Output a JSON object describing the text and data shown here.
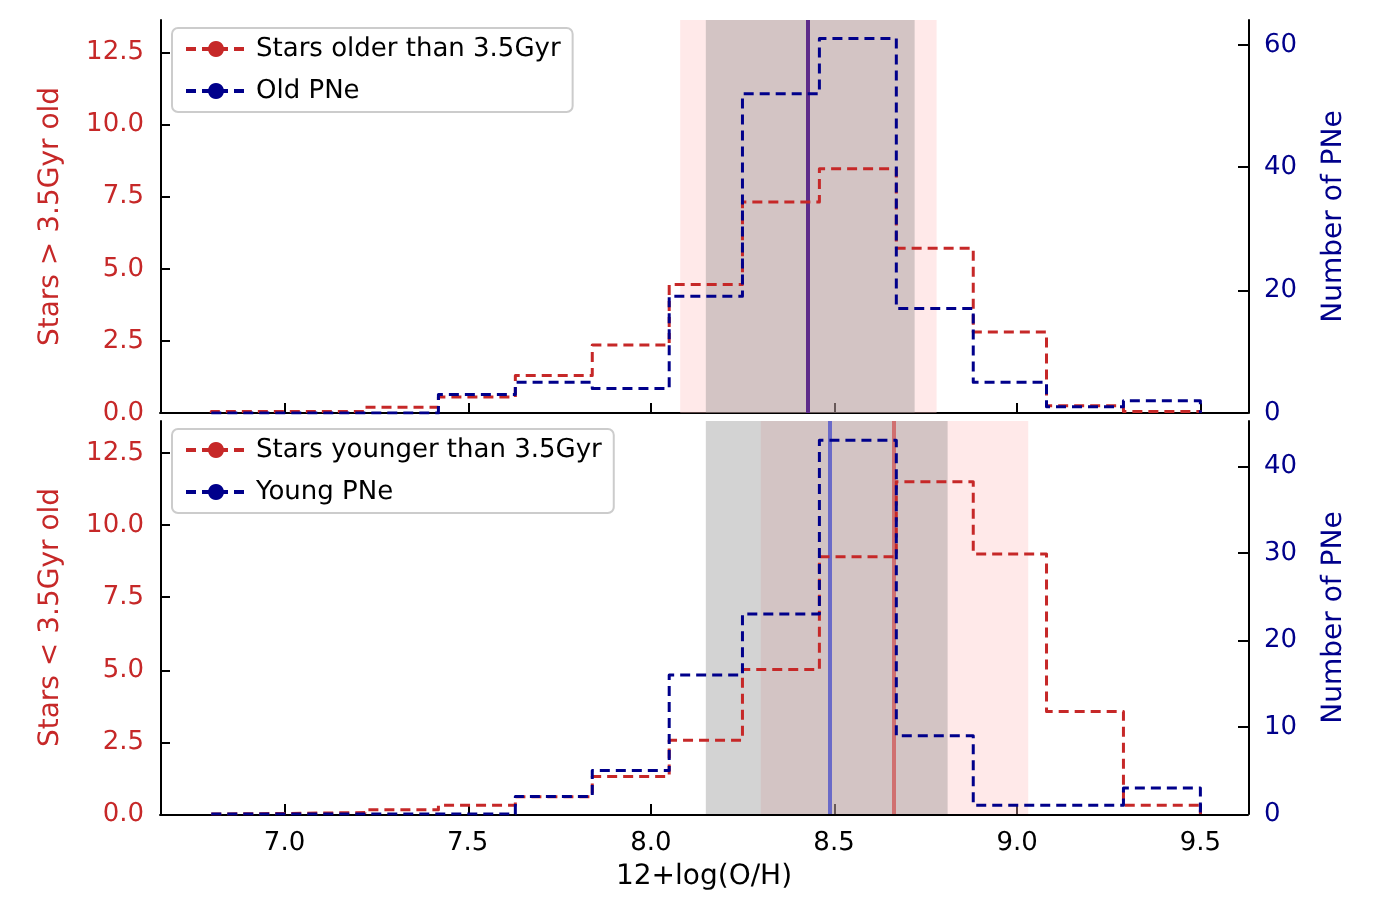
{
  "chart_data": [
    {
      "type": "histogram",
      "ylabel": "Stars > 3.5Gyr old",
      "y2label": "Number of PNe",
      "bins": [
        6.8,
        7.01,
        7.22,
        7.42,
        7.63,
        7.84,
        8.05,
        8.25,
        8.46,
        8.67,
        8.88,
        9.08,
        9.29,
        9.5
      ],
      "series": [
        {
          "name": "Stars older than 3.5Gyr",
          "color": "#c62828",
          "values": [
            0.05,
            0.05,
            0.2,
            0.55,
            1.3,
            2.35,
            4.45,
            7.3,
            8.45,
            5.7,
            2.8,
            0.25,
            0.05
          ]
        },
        {
          "name": "Old PNe",
          "color": "#00008b",
          "axis": "y2",
          "values": [
            0,
            0,
            0,
            3,
            5,
            4,
            19,
            52,
            61,
            17,
            5,
            1,
            2
          ]
        }
      ],
      "xlim": [
        6.66,
        9.63
      ],
      "xticks": [
        7,
        7.5,
        8,
        8.5,
        9,
        9.5
      ],
      "ylim": [
        0,
        13.6
      ],
      "yticks": [
        {
          "value": 0,
          "label": "0.0"
        },
        2.5,
        {
          "value": 5,
          "label": "5.0"
        },
        7.5,
        {
          "value": 10,
          "label": "10.0"
        },
        12.5
      ],
      "y2lim": [
        0,
        64
      ],
      "y2ticks": [
        0,
        20,
        40,
        60
      ],
      "bands": [
        {
          "axis": "x",
          "from": 8.08,
          "to": 8.78,
          "color": "#ffc0c0"
        },
        {
          "axis": "x",
          "from": 8.15,
          "to": 8.72,
          "color": "#808080"
        }
      ],
      "ref_lines": [
        {
          "axis": "x",
          "value": 8.43,
          "color": "#5e2b8a"
        }
      ],
      "legend": "top left",
      "line_style": "dashed",
      "tick_labels": "y",
      "grid": false
    },
    {
      "type": "histogram",
      "ylabel": "Stars < 3.5Gyr old",
      "y2label": "Number of PNe",
      "xlabel": "12+log(O/H)",
      "bins": [
        6.8,
        7.01,
        7.22,
        7.42,
        7.63,
        7.84,
        8.05,
        8.25,
        8.46,
        8.67,
        8.88,
        9.08,
        9.29,
        9.5
      ],
      "series": [
        {
          "name": "Stars younger than 3.5Gyr",
          "color": "#c62828",
          "values": [
            0.02,
            0.05,
            0.15,
            0.3,
            0.6,
            1.3,
            2.55,
            5.0,
            8.9,
            11.5,
            9.0,
            3.55,
            0.3
          ]
        },
        {
          "name": "Young PNe",
          "color": "#00008b",
          "axis": "y2",
          "values": [
            0,
            0,
            0,
            0,
            2,
            5,
            16,
            23,
            43,
            9,
            1,
            1,
            3
          ]
        }
      ],
      "xlim": [
        6.66,
        9.63
      ],
      "xticks": [
        {
          "value": 7,
          "label": "7.0"
        },
        7.5,
        {
          "value": 8,
          "label": "8.0"
        },
        8.5,
        {
          "value": 9,
          "label": "9.0"
        },
        9.5
      ],
      "ylim": [
        0,
        13.6
      ],
      "yticks": [
        {
          "value": 0,
          "label": "0.0"
        },
        2.5,
        {
          "value": 5,
          "label": "5.0"
        },
        7.5,
        {
          "value": 10,
          "label": "10.0"
        },
        12.5
      ],
      "y2lim": [
        0,
        45.2
      ],
      "y2ticks": [
        0,
        10,
        20,
        30,
        40
      ],
      "bands": [
        {
          "axis": "x",
          "from": 8.3,
          "to": 9.03,
          "color": "#ffc0c0"
        },
        {
          "axis": "x",
          "from": 8.15,
          "to": 8.81,
          "color": "#808080"
        }
      ],
      "ref_lines": [
        {
          "axis": "x",
          "value": 8.49,
          "color": "#6a6ac8"
        },
        {
          "axis": "x",
          "value": 8.66,
          "color": "#d07070"
        }
      ],
      "legend": "top left",
      "line_style": "dashed",
      "grid": false
    }
  ]
}
